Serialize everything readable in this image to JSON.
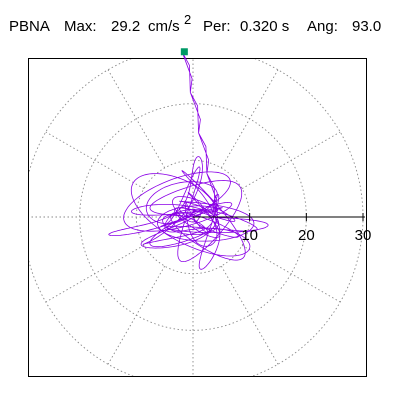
{
  "header": {
    "station": "PBNA",
    "max_label": "Max:",
    "max_value": "29.2",
    "max_unit": "cm/s",
    "max_unit_exp": "2",
    "per_label": "Per:",
    "per_value": "0.320 s",
    "ang_label": "Ang:",
    "ang_value": "93.0"
  },
  "chart_data": {
    "type": "polar-orbit",
    "radial_ticks": [
      "10",
      "20",
      "30"
    ],
    "radial_range": [
      0,
      30
    ],
    "ring_values": [
      10,
      20,
      30
    ],
    "spoke_angles_deg": [
      0,
      30,
      60,
      90,
      120,
      150,
      180,
      210,
      240,
      270,
      300,
      330
    ],
    "grid": true,
    "max_point": {
      "value": 29.2,
      "angle_deg": 93.0
    },
    "colors": {
      "trace": "#8a00e6",
      "max_marker": "#009966",
      "grid": "#888888",
      "axis": "#000000"
    }
  }
}
